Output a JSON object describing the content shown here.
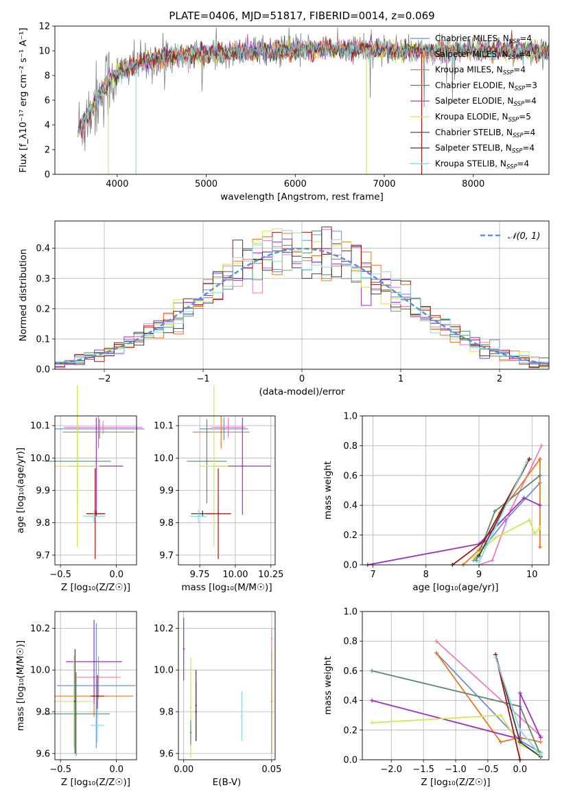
{
  "chart_data": [
    {
      "id": "spectrum",
      "type": "line",
      "title": "PLATE=0406, MJD=51817, FIBERID=0014, z=0.069",
      "xlabel": "wavelength [Angstrom, rest frame]",
      "ylabel": "Flux [f_λ10⁻¹⁷ erg cm⁻² s⁻¹ A⁻¹]",
      "xlim": [
        3300,
        8850
      ],
      "ylim": [
        0,
        12
      ],
      "xticks": [
        4000,
        5000,
        6000,
        7000,
        8000
      ],
      "yticks": [
        0,
        2,
        4,
        6,
        8,
        10,
        12
      ],
      "grid": false,
      "legend_position": "top-right",
      "legend": [
        {
          "name": "Chabrier MILES, N_SSP=4",
          "main": "Chabrier MILES, N",
          "sub": "SSP",
          "tail": "=4",
          "color": "#6a8fd8"
        },
        {
          "name": "Salpeter MILES, N_SSP=4",
          "main": "Salpeter MILES, N",
          "sub": "SSP",
          "tail": "=4",
          "color": "#ea7fbd"
        },
        {
          "name": "Kroupa MILES, N_SSP=4",
          "main": "Kroupa MILES, N",
          "sub": "SSP",
          "tail": "=4",
          "color": "#e8791f"
        },
        {
          "name": "Chabrier ELODIE, N_SSP=3",
          "main": "Chabrier ELODIE, N",
          "sub": "SSP",
          "tail": "=3",
          "color": "#5a8b64"
        },
        {
          "name": "Salpeter ELODIE, N_SSP=4",
          "main": "Salpeter ELODIE, N",
          "sub": "SSP",
          "tail": "=4",
          "color": "#9b2fbe"
        },
        {
          "name": "Kroupa ELODIE, N_SSP=5",
          "main": "Kroupa ELODIE, N",
          "sub": "SSP",
          "tail": "=5",
          "color": "#d2e654"
        },
        {
          "name": "Chabrier STELIB, N_SSP=4",
          "main": "Chabrier STELIB, N",
          "sub": "SSP",
          "tail": "=4",
          "color": "#3b3b3b"
        },
        {
          "name": "Salpeter STELIB, N_SSP=4",
          "main": "Salpeter STELIB, N",
          "sub": "SSP",
          "tail": "=4",
          "color": "#a11414"
        },
        {
          "name": "Kroupa STELIB, N_SSP=4",
          "main": "Kroupa STELIB, N",
          "sub": "SSP",
          "tail": "=4",
          "color": "#89d9e2"
        }
      ],
      "data_color": "#808080",
      "model_color": "#6fd3dc",
      "model_curve": {
        "x": [
          3560,
          3700,
          3800,
          3900,
          4000,
          4100,
          4200,
          4300,
          4500,
          4700,
          5000,
          5300,
          5600,
          5900,
          6200,
          6600,
          7000,
          7400,
          7800,
          8200,
          8500,
          8800
        ],
        "y": [
          3.5,
          5.2,
          6.4,
          7.6,
          8.2,
          8.6,
          8.8,
          9.1,
          9.4,
          9.6,
          9.8,
          9.9,
          10.0,
          10.1,
          10.1,
          10.1,
          10.0,
          9.95,
          10.0,
          10.0,
          10.05,
          10.0
        ]
      }
    },
    {
      "id": "residuals",
      "type": "bar",
      "xlabel": "(data-model)/error",
      "ylabel": "Normed distribution",
      "xlim": [
        -2.5,
        2.5
      ],
      "ylim": [
        0,
        0.49
      ],
      "xticks": [
        -2,
        -1,
        0,
        1,
        2
      ],
      "yticks": [
        0.0,
        0.1,
        0.2,
        0.3,
        0.4
      ],
      "grid": true,
      "legend_position": "top-right",
      "gaussian_label": "𝒩(0, 1)",
      "gaussian_color": "#5b8ee0",
      "bin_width": 0.1
    },
    {
      "id": "age-vs-Z",
      "type": "scatter",
      "xlabel": "Z [log₁₀(Z/Z☉)]",
      "ylabel": "age [log₁₀(age/yr)]",
      "xlim": [
        -0.55,
        0.18
      ],
      "ylim": [
        9.67,
        10.13
      ],
      "xticks": [
        -0.5,
        0.0
      ],
      "yticks": [
        9.7,
        9.8,
        9.9,
        10.0,
        10.1
      ],
      "grid": true,
      "points": [
        {
          "x": -0.15,
          "y": 10.09,
          "xerr": 0.4,
          "yerr": 0.03,
          "color": "#6a8fd8"
        },
        {
          "x": -0.12,
          "y": 10.095,
          "xerr": 0.35,
          "yerr": 0.02,
          "color": "#ea7fbd"
        },
        {
          "x": -0.16,
          "y": 10.08,
          "xerr": 0.32,
          "yerr": 0.05,
          "color": "#e8791f"
        },
        {
          "x": -0.35,
          "y": 9.99,
          "xerr": 0.3,
          "yerr": 0.14,
          "color": "#5a8b64"
        },
        {
          "x": -0.18,
          "y": 9.975,
          "xerr": 0.24,
          "yerr": 0.15,
          "color": "#9b2fbe"
        },
        {
          "x": -0.35,
          "y": 9.975,
          "xerr": 0.2,
          "yerr": 0.25,
          "color": "#d2e654"
        },
        {
          "x": -0.18,
          "y": 9.828,
          "xerr": 0.08,
          "yerr": 0.01,
          "color": "#3b3b3b"
        },
        {
          "x": -0.19,
          "y": 9.828,
          "xerr": 0.08,
          "yerr": 0.14,
          "color": "#a11414"
        },
        {
          "x": -0.2,
          "y": 9.82,
          "xerr": 0.1,
          "yerr": 0.02,
          "color": "#89d9e2"
        }
      ]
    },
    {
      "id": "age-vs-mass",
      "type": "scatter",
      "xlabel": "mass [log₁₀(M/M☉)]",
      "ylabel": "",
      "xlim": [
        9.6,
        10.28
      ],
      "ylim": [
        9.67,
        10.13
      ],
      "xticks": [
        9.75,
        10.0,
        10.25
      ],
      "yticks": [
        9.7,
        9.8,
        9.9,
        10.0,
        10.1
      ],
      "grid": true,
      "points": [
        {
          "x": 9.92,
          "y": 10.09,
          "xerr": 0.17,
          "yerr": 0.035,
          "color": "#6a8fd8"
        },
        {
          "x": 9.95,
          "y": 10.095,
          "xerr": 0.12,
          "yerr": 0.03,
          "color": "#ea7fbd"
        },
        {
          "x": 9.9,
          "y": 10.08,
          "xerr": 0.2,
          "yerr": 0.05,
          "color": "#e8791f"
        },
        {
          "x": 9.8,
          "y": 9.99,
          "xerr": 0.14,
          "yerr": 0.13,
          "color": "#5a8b64"
        },
        {
          "x": 10.05,
          "y": 9.975,
          "xerr": 0.2,
          "yerr": 0.15,
          "color": "#9b2fbe"
        },
        {
          "x": 9.85,
          "y": 9.975,
          "xerr": 0.1,
          "yerr": 0.25,
          "color": "#d2e654"
        },
        {
          "x": 9.77,
          "y": 9.828,
          "xerr": 0.08,
          "yerr": 0.01,
          "color": "#3b3b3b"
        },
        {
          "x": 9.88,
          "y": 9.828,
          "xerr": 0.09,
          "yerr": 0.14,
          "color": "#a11414"
        },
        {
          "x": 9.74,
          "y": 9.82,
          "xerr": 0.06,
          "yerr": 0.02,
          "color": "#89d9e2"
        }
      ]
    },
    {
      "id": "mass-weight-vs-age",
      "type": "line",
      "xlabel": "age [log₁₀(age/yr)]",
      "ylabel": "mass weight",
      "xlim": [
        6.8,
        10.32
      ],
      "ylim": [
        0.0,
        1.0
      ],
      "xticks": [
        7,
        8,
        9,
        10
      ],
      "yticks": [
        0.0,
        0.2,
        0.4,
        0.6,
        0.8,
        1.0
      ],
      "grid": true,
      "series": [
        {
          "color": "#6a8fd8",
          "x": [
            8.9,
            9.1,
            9.5,
            10.15
          ],
          "y": [
            0.03,
            0.12,
            0.3,
            0.55
          ]
        },
        {
          "color": "#ea7fbd",
          "x": [
            9.0,
            9.25,
            9.6,
            10.18
          ],
          "y": [
            0.0,
            0.03,
            0.37,
            0.8
          ]
        },
        {
          "color": "#e8791f",
          "x": [
            8.7,
            9.0,
            9.4,
            10.15,
            10.15
          ],
          "y": [
            0.0,
            0.1,
            0.35,
            0.71,
            0.12
          ]
        },
        {
          "color": "#5a8b64",
          "x": [
            8.95,
            9.3,
            10.15
          ],
          "y": [
            0.03,
            0.36,
            0.6
          ]
        },
        {
          "color": "#9b2fbe",
          "x": [
            6.9,
            9.0,
            9.85,
            10.15
          ],
          "y": [
            0.0,
            0.14,
            0.45,
            0.4
          ]
        },
        {
          "color": "#d2e654",
          "x": [
            8.9,
            9.3,
            9.95,
            10.05,
            10.15
          ],
          "y": [
            0.05,
            0.18,
            0.3,
            0.21,
            0.25
          ]
        },
        {
          "color": "#3b3b3b",
          "x": [
            9.0,
            9.95
          ],
          "y": [
            0.06,
            0.71
          ]
        },
        {
          "color": "#a11414",
          "x": [
            8.5,
            9.1,
            9.95
          ],
          "y": [
            0.0,
            0.16,
            0.71
          ]
        },
        {
          "color": "#89d9e2",
          "x": [
            9.0,
            9.9
          ],
          "y": [
            0.02,
            0.69
          ]
        }
      ]
    },
    {
      "id": "mass-vs-Z",
      "type": "scatter",
      "xlabel": "Z [log₁₀(Z/Z☉)]",
      "ylabel": "mass [log₁₀(M/M☉)]",
      "xlim": [
        -0.55,
        0.18
      ],
      "ylim": [
        9.57,
        10.28
      ],
      "xticks": [
        -0.5,
        0.0
      ],
      "yticks": [
        9.6,
        9.8,
        10.0,
        10.2
      ],
      "grid": true,
      "points": [
        {
          "x": -0.18,
          "y": 9.925,
          "xerr": 0.35,
          "yerr": 0.3,
          "color": "#6a8fd8"
        },
        {
          "x": -0.16,
          "y": 9.965,
          "xerr": 0.2,
          "yerr": 0.1,
          "color": "#ea7fbd"
        },
        {
          "x": -0.2,
          "y": 9.875,
          "xerr": 0.35,
          "yerr": 0.1,
          "color": "#e8791f"
        },
        {
          "x": -0.36,
          "y": 9.79,
          "xerr": 0.3,
          "yerr": 0.2,
          "color": "#5a8b64"
        },
        {
          "x": -0.2,
          "y": 10.04,
          "xerr": 0.25,
          "yerr": 0.2,
          "color": "#9b2fbe"
        },
        {
          "x": -0.38,
          "y": 9.85,
          "xerr": 0.18,
          "yerr": 0.22,
          "color": "#d2e654"
        },
        {
          "x": -0.37,
          "y": 9.85,
          "xerr": 0.01,
          "yerr": 0.25,
          "color": "#3b3b3b"
        },
        {
          "x": -0.17,
          "y": 9.875,
          "xerr": 0.06,
          "yerr": 0.1,
          "color": "#a11414"
        },
        {
          "x": -0.17,
          "y": 9.735,
          "xerr": 0.06,
          "yerr": 0.08,
          "color": "#89d9e2"
        }
      ]
    },
    {
      "id": "mass-vs-EBV",
      "type": "scatter",
      "xlabel": "E(B-V)",
      "ylabel": "",
      "xlim": [
        -0.003,
        0.052
      ],
      "ylim": [
        9.57,
        10.28
      ],
      "xticks": [
        0.0,
        0.05
      ],
      "yticks": [
        9.6,
        9.8,
        10.0,
        10.2
      ],
      "grid": true,
      "points": [
        {
          "x": 0.0,
          "y": 10.1,
          "xerr": 0,
          "yerr": 0.15,
          "color": "#9b2fbe"
        },
        {
          "x": 0.004,
          "y": 9.82,
          "xerr": 0,
          "yerr": 0.24,
          "color": "#d2e654"
        },
        {
          "x": 0.004,
          "y": 9.7,
          "xerr": 0,
          "yerr": 0.06,
          "color": "#5a8b64"
        },
        {
          "x": 0.007,
          "y": 9.83,
          "xerr": 0,
          "yerr": 0.17,
          "color": "#a11414"
        },
        {
          "x": 0.007,
          "y": 9.8,
          "xerr": 0,
          "yerr": 0.14,
          "color": "#3b3b3b"
        },
        {
          "x": 0.033,
          "y": 9.78,
          "xerr": 0,
          "yerr": 0.12,
          "color": "#89d9e2"
        },
        {
          "x": 0.05,
          "y": 9.85,
          "xerr": 0,
          "yerr": 0.25,
          "color": "#e8791f"
        },
        {
          "x": 0.05,
          "y": 10.15,
          "xerr": 0,
          "yerr": 0.05,
          "color": "#ea7fbd"
        }
      ]
    },
    {
      "id": "mass-weight-vs-Z",
      "type": "line",
      "xlabel": "Z [log₁₀(Z/Z☉)]",
      "ylabel": "mass weight",
      "xlim": [
        -2.45,
        0.45
      ],
      "ylim": [
        0.0,
        1.0
      ],
      "xticks": [
        -2.0,
        -1.5,
        -1.0,
        -0.5,
        0.0
      ],
      "yticks": [
        0.0,
        0.2,
        0.4,
        0.6,
        0.8,
        1.0
      ],
      "grid": true,
      "series": [
        {
          "color": "#6a8fd8",
          "x": [
            -1.3,
            0.0,
            0.32
          ],
          "y": [
            0.72,
            0.13,
            0.05
          ]
        },
        {
          "color": "#ea7fbd",
          "x": [
            -1.3,
            0.32
          ],
          "y": [
            0.8,
            0.16
          ]
        },
        {
          "color": "#e8791f",
          "x": [
            -1.3,
            -0.3,
            0.0,
            0.32
          ],
          "y": [
            0.72,
            0.12,
            0.15,
            0.12
          ]
        },
        {
          "color": "#5a8b64",
          "x": [
            -2.3,
            0.0,
            0.32
          ],
          "y": [
            0.6,
            0.36,
            0.03
          ]
        },
        {
          "color": "#9b2fbe",
          "x": [
            -2.3,
            0.0,
            0.0,
            0.32
          ],
          "y": [
            0.4,
            0.14,
            0.45,
            0.15
          ]
        },
        {
          "color": "#d2e654",
          "x": [
            -2.3,
            -0.3,
            0.0,
            0.32
          ],
          "y": [
            0.25,
            0.3,
            0.1,
            0.04
          ]
        },
        {
          "color": "#3b3b3b",
          "x": [
            -0.38,
            0.0,
            0.32
          ],
          "y": [
            0.71,
            0.12,
            0.02
          ]
        },
        {
          "color": "#a11414",
          "x": [
            -0.38,
            0.0
          ],
          "y": [
            0.71,
            0.0
          ]
        },
        {
          "color": "#89d9e2",
          "x": [
            -0.38,
            0.0,
            0.32
          ],
          "y": [
            0.69,
            0.2,
            0.03
          ]
        }
      ]
    }
  ]
}
